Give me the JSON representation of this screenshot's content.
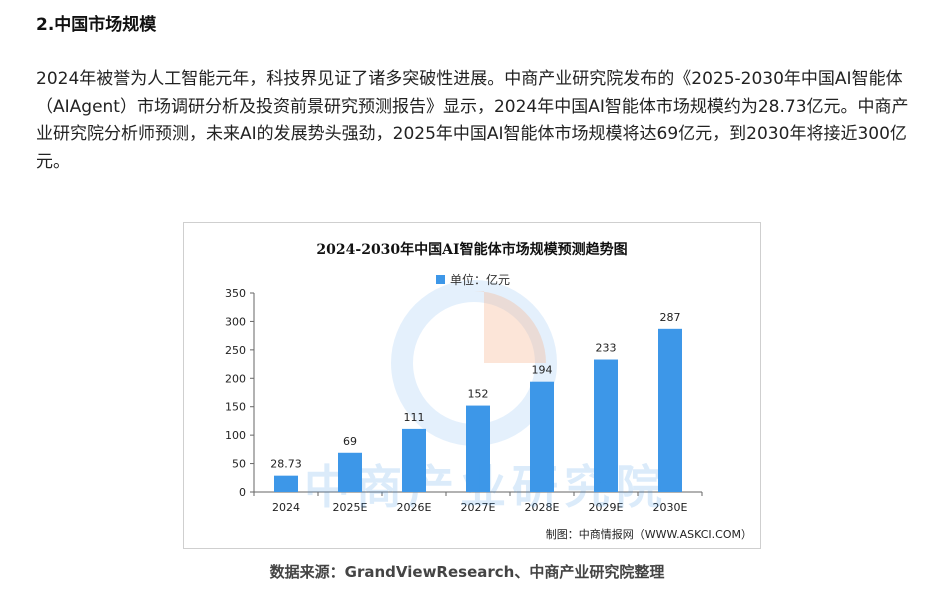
{
  "section": {
    "title": "2.中国市场规模"
  },
  "article": {
    "paragraph": "2024年被誉为人工智能元年，科技界见证了诸多突破性进展。中商产业研究院发布的《2025-2030年中国AI智能体（AIAgent）市场调研分析及投资前景研究预测报告》显示，2024年中国AI智能体市场规模约为28.73亿元。中商产业研究院分析师预测，未来AI的发展势头强劲，2025年中国AI智能体市场规模将达69亿元，到2030年将接近300亿元。"
  },
  "chart": {
    "legend_label": "单位：亿元",
    "credit": "制图：中商情报网（WWW.ASKCI.COM）",
    "watermark": "中商产业研究院",
    "bar_color": "#3d97e8",
    "watermark_orange": "#f6b48f"
  },
  "chart_data": {
    "type": "bar",
    "title": "2024-2030年中国AI智能体市场规模预测趋势图",
    "categories": [
      "2024",
      "2025E",
      "2026E",
      "2027E",
      "2028E",
      "2029E",
      "2030E"
    ],
    "values": [
      28.73,
      69,
      111,
      152,
      194,
      233,
      287
    ],
    "value_labels": [
      "28.73",
      "69",
      "111",
      "152",
      "194",
      "233",
      "287"
    ],
    "yticks": [
      0,
      50,
      100,
      150,
      200,
      250,
      300,
      350
    ],
    "ylim": [
      0,
      350
    ],
    "grid": false,
    "legend": "top-center"
  },
  "footer": {
    "source": "数据来源：GrandViewResearch、中商产业研究院整理"
  }
}
